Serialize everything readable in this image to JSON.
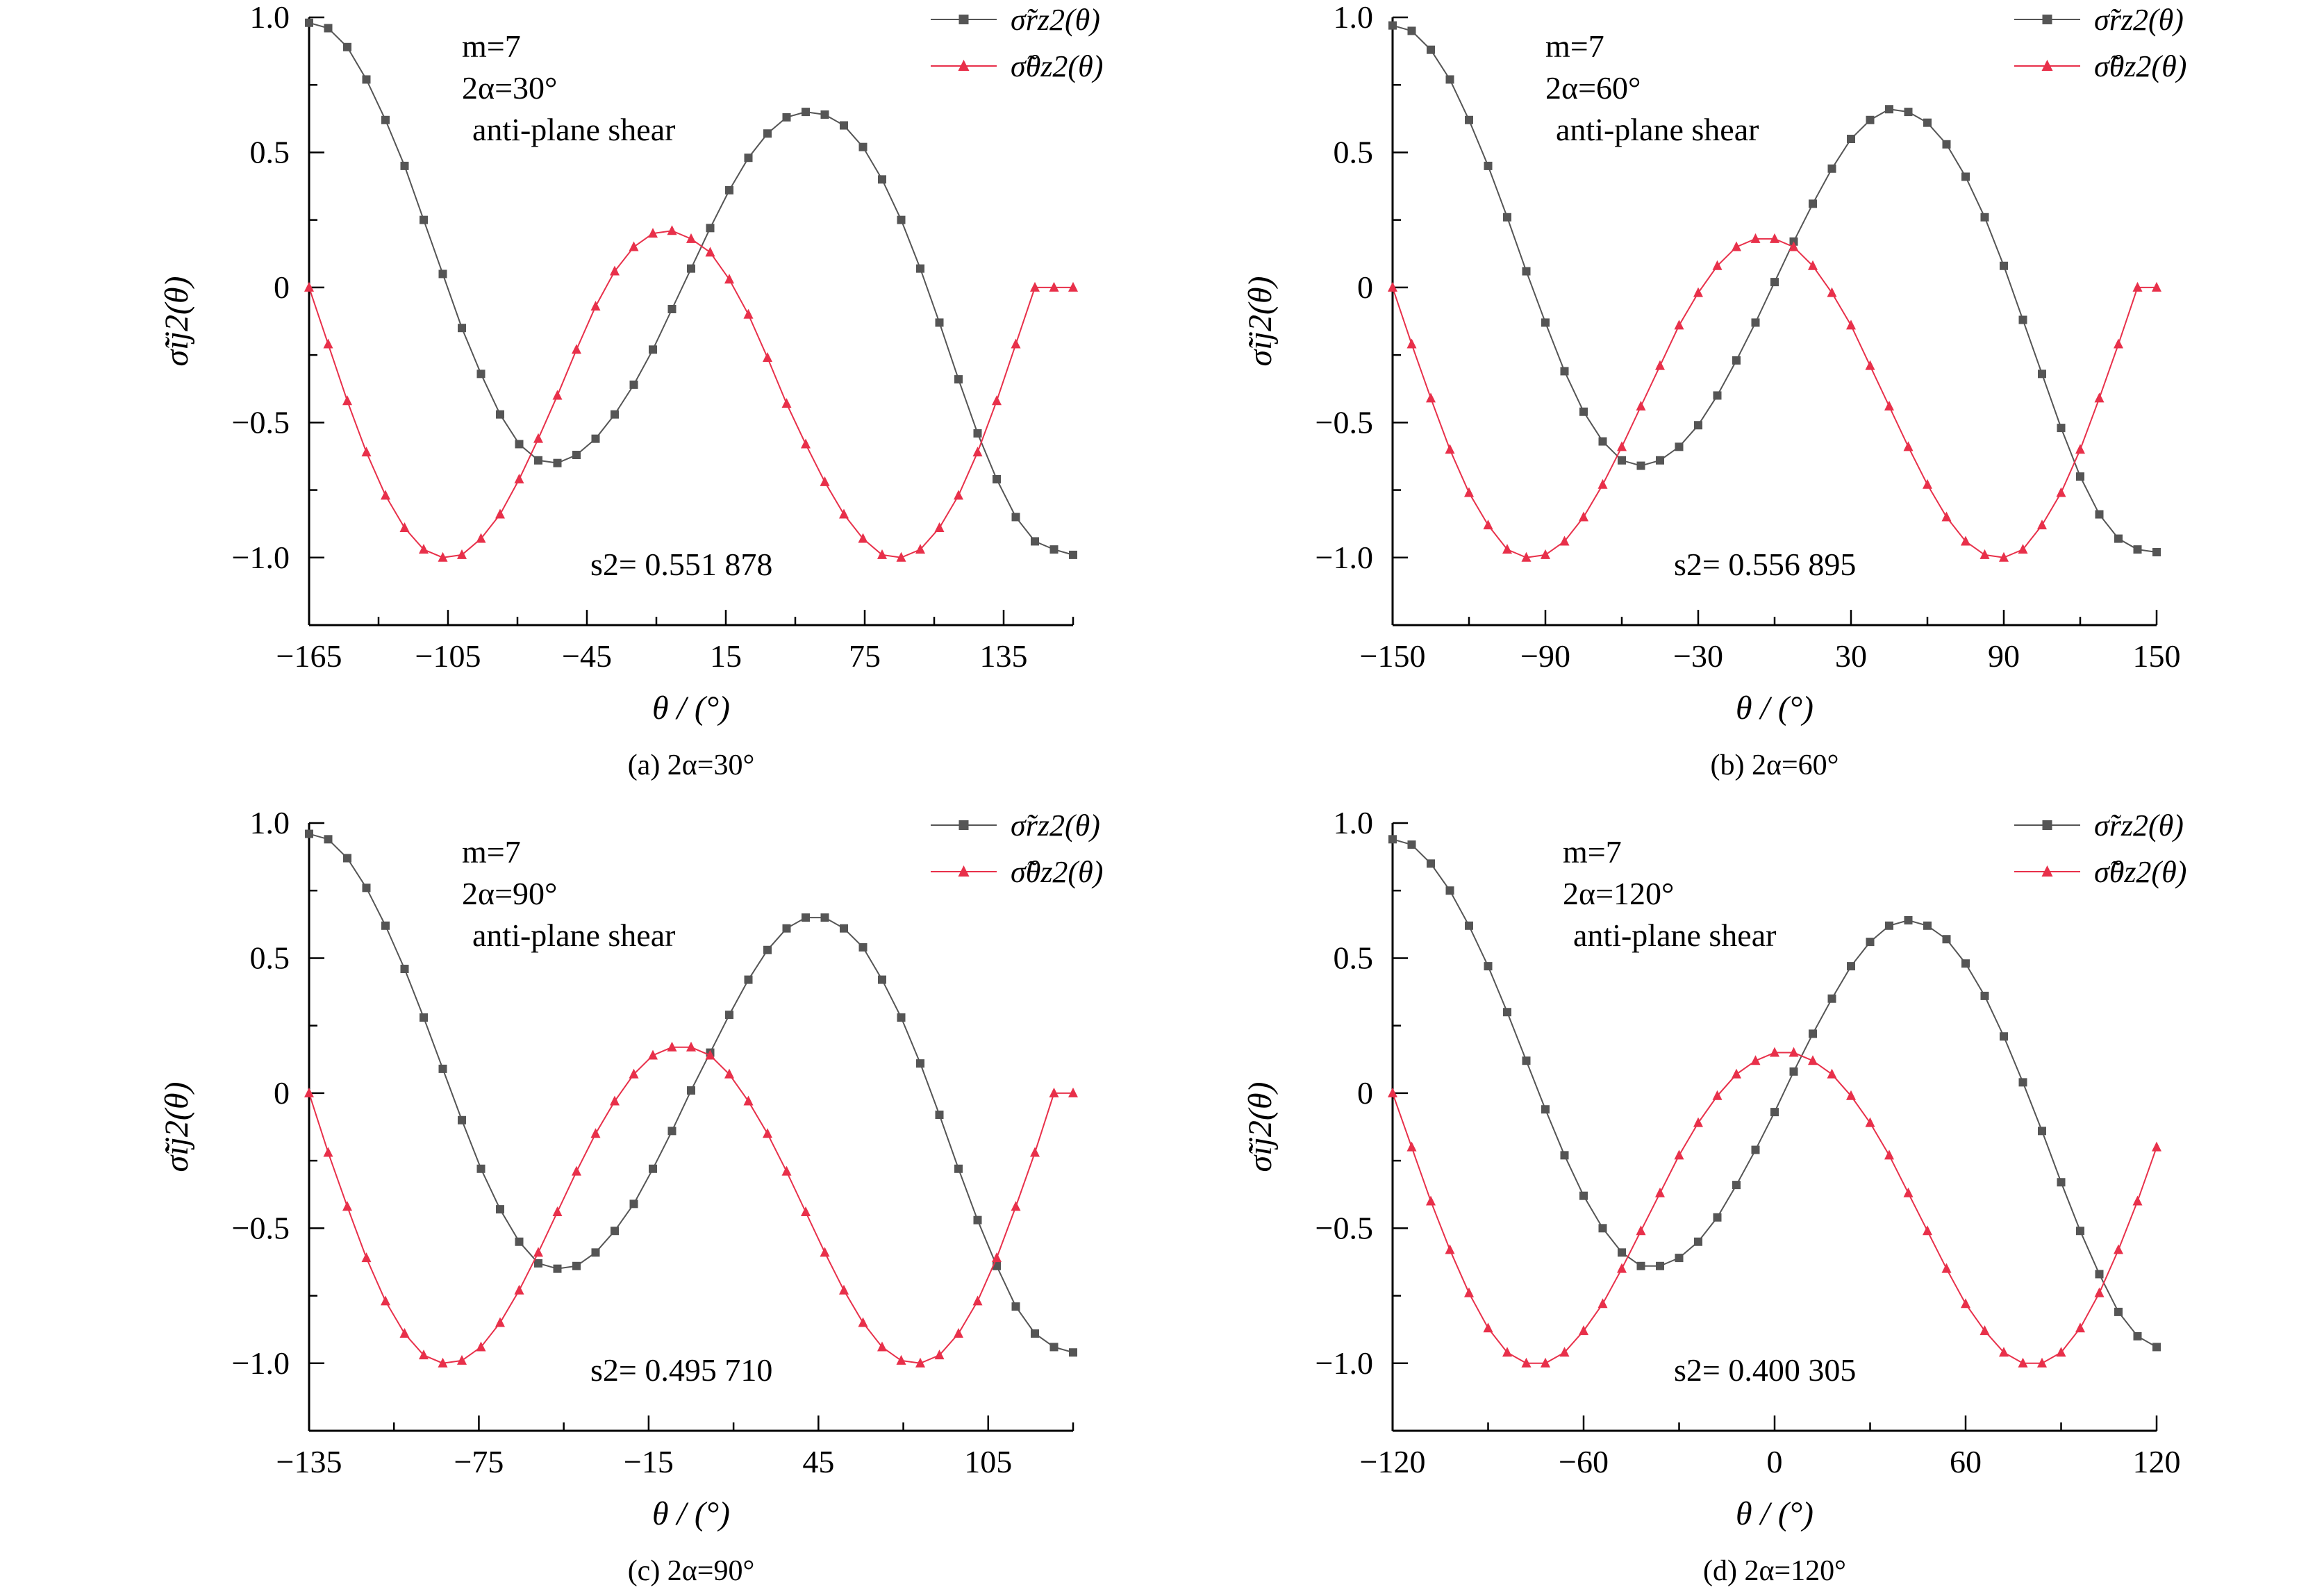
{
  "legend_labels": [
    "σ̃rz2(θ)",
    "σ̃θz2(θ)"
  ],
  "xlabel": "θ / (°)",
  "ylabel": "σ̃ij2(θ)",
  "colors": {
    "rz": "#555555",
    "thetaz": "#e8304a"
  },
  "chart_data": [
    {
      "type": "line",
      "caption": "(a) 2α=30°",
      "annotations": [
        "m=7",
        "2α=30°",
        "anti-plane shear",
        "s2= 0.551 878"
      ],
      "xlim": [
        -165,
        165
      ],
      "ylim": [
        -1.25,
        1.0
      ],
      "xticks": [
        -165,
        -105,
        -45,
        15,
        75,
        135
      ],
      "xtick_labels": [
        "−165",
        "−105",
        "−45",
        "15",
        "75",
        "135"
      ],
      "yticks": [
        1.0,
        0.5,
        0,
        -0.5,
        -1.0
      ],
      "ytick_labels": [
        "1.0",
        "0.5",
        "0",
        "−0.5",
        "−1.0"
      ],
      "series": [
        {
          "name": "σ̃rz2(θ)",
          "x_start": -165,
          "x_end": 165,
          "points": 41,
          "values": [
            0.98,
            0.96,
            0.89,
            0.77,
            0.62,
            0.45,
            0.25,
            0.05,
            -0.15,
            -0.32,
            -0.47,
            -0.58,
            -0.64,
            -0.65,
            -0.62,
            -0.56,
            -0.47,
            -0.36,
            -0.23,
            -0.08,
            0.07,
            0.22,
            0.36,
            0.48,
            0.57,
            0.63,
            0.65,
            0.64,
            0.6,
            0.52,
            0.4,
            0.25,
            0.07,
            -0.13,
            -0.34,
            -0.54,
            -0.71,
            -0.85,
            -0.94,
            -0.97,
            -0.99
          ]
        },
        {
          "name": "σ̃θz2(θ)",
          "x_start": -165,
          "x_end": 165,
          "points": 41,
          "values": [
            0.0,
            -0.21,
            -0.42,
            -0.61,
            -0.77,
            -0.89,
            -0.97,
            -1.0,
            -0.99,
            -0.93,
            -0.84,
            -0.71,
            -0.56,
            -0.4,
            -0.23,
            -0.07,
            0.06,
            0.15,
            0.2,
            0.21,
            0.18,
            0.13,
            0.03,
            -0.1,
            -0.26,
            -0.43,
            -0.58,
            -0.72,
            -0.84,
            -0.93,
            -0.99,
            -1.0,
            -0.97,
            -0.89,
            -0.77,
            -0.61,
            -0.42,
            -0.21,
            0.0,
            0.0,
            0.0
          ]
        }
      ]
    },
    {
      "type": "line",
      "caption": "(b) 2α=60°",
      "annotations": [
        "m=7",
        "2α=60°",
        "anti-plane shear",
        "s2= 0.556 895"
      ],
      "xlim": [
        -150,
        150
      ],
      "ylim": [
        -1.25,
        1.0
      ],
      "xticks": [
        -150,
        -90,
        -30,
        30,
        90,
        150
      ],
      "xtick_labels": [
        "−150",
        "−90",
        "−30",
        "30",
        "90",
        "150"
      ],
      "yticks": [
        1.0,
        0.5,
        0,
        -0.5,
        -1.0
      ],
      "ytick_labels": [
        "1.0",
        "0.5",
        "0",
        "−0.5",
        "−1.0"
      ],
      "series": [
        {
          "name": "σ̃rz2(θ)",
          "x_start": -150,
          "x_end": 150,
          "points": 41,
          "values": [
            0.97,
            0.95,
            0.88,
            0.77,
            0.62,
            0.45,
            0.26,
            0.06,
            -0.13,
            -0.31,
            -0.46,
            -0.57,
            -0.64,
            -0.66,
            -0.64,
            -0.59,
            -0.51,
            -0.4,
            -0.27,
            -0.13,
            0.02,
            0.17,
            0.31,
            0.44,
            0.55,
            0.62,
            0.66,
            0.65,
            0.61,
            0.53,
            0.41,
            0.26,
            0.08,
            -0.12,
            -0.32,
            -0.52,
            -0.7,
            -0.84,
            -0.93,
            -0.97,
            -0.98
          ]
        },
        {
          "name": "σ̃θz2(θ)",
          "x_start": -150,
          "x_end": 150,
          "points": 41,
          "values": [
            0.0,
            -0.21,
            -0.41,
            -0.6,
            -0.76,
            -0.88,
            -0.97,
            -1.0,
            -0.99,
            -0.94,
            -0.85,
            -0.73,
            -0.59,
            -0.44,
            -0.29,
            -0.14,
            -0.02,
            0.08,
            0.15,
            0.18,
            0.18,
            0.15,
            0.08,
            -0.02,
            -0.14,
            -0.29,
            -0.44,
            -0.59,
            -0.73,
            -0.85,
            -0.94,
            -0.99,
            -1.0,
            -0.97,
            -0.88,
            -0.76,
            -0.6,
            -0.41,
            -0.21,
            0.0,
            0.0
          ]
        }
      ]
    },
    {
      "type": "line",
      "caption": "(c) 2α=90°",
      "annotations": [
        "m=7",
        "2α=90°",
        "anti-plane shear",
        "s2= 0.495 710"
      ],
      "xlim": [
        -135,
        135
      ],
      "ylim": [
        -1.25,
        1.0
      ],
      "xticks": [
        -135,
        -75,
        -15,
        45,
        105
      ],
      "xtick_labels": [
        "−135",
        "−75",
        "−15",
        "45",
        "105"
      ],
      "yticks": [
        1.0,
        0.5,
        0,
        -0.5,
        -1.0
      ],
      "ytick_labels": [
        "1.0",
        "0.5",
        "0",
        "−0.5",
        "−1.0"
      ],
      "series": [
        {
          "name": "σ̃rz2(θ)",
          "x_start": -135,
          "x_end": 135,
          "points": 41,
          "values": [
            0.96,
            0.94,
            0.87,
            0.76,
            0.62,
            0.46,
            0.28,
            0.09,
            -0.1,
            -0.28,
            -0.43,
            -0.55,
            -0.63,
            -0.65,
            -0.64,
            -0.59,
            -0.51,
            -0.41,
            -0.28,
            -0.14,
            0.01,
            0.15,
            0.29,
            0.42,
            0.53,
            0.61,
            0.65,
            0.65,
            0.61,
            0.54,
            0.42,
            0.28,
            0.11,
            -0.08,
            -0.28,
            -0.47,
            -0.64,
            -0.79,
            -0.89,
            -0.94,
            -0.96
          ]
        },
        {
          "name": "σ̃θz2(θ)",
          "x_start": -135,
          "x_end": 135,
          "points": 41,
          "values": [
            0.0,
            -0.22,
            -0.42,
            -0.61,
            -0.77,
            -0.89,
            -0.97,
            -1.0,
            -0.99,
            -0.94,
            -0.85,
            -0.73,
            -0.59,
            -0.44,
            -0.29,
            -0.15,
            -0.03,
            0.07,
            0.14,
            0.17,
            0.17,
            0.14,
            0.07,
            -0.03,
            -0.15,
            -0.29,
            -0.44,
            -0.59,
            -0.73,
            -0.85,
            -0.94,
            -0.99,
            -1.0,
            -0.97,
            -0.89,
            -0.77,
            -0.61,
            -0.42,
            -0.22,
            0.0,
            0.0
          ]
        }
      ]
    },
    {
      "type": "line",
      "caption": "(d) 2α=120°",
      "annotations": [
        "m=7",
        "2α=120°",
        "anti-plane shear",
        "s2= 0.400 305"
      ],
      "xlim": [
        -120,
        120
      ],
      "ylim": [
        -1.25,
        1.0
      ],
      "xticks": [
        -120,
        -60,
        0,
        60,
        120
      ],
      "xtick_labels": [
        "−120",
        "−60",
        "0",
        "60",
        "120"
      ],
      "yticks": [
        1.0,
        0.5,
        0,
        -0.5,
        -1.0
      ],
      "ytick_labels": [
        "1.0",
        "0.5",
        "0",
        "−0.5",
        "−1.0"
      ],
      "series": [
        {
          "name": "σ̃rz2(θ)",
          "x_start": -120,
          "x_end": 120,
          "points": 41,
          "values": [
            0.94,
            0.92,
            0.85,
            0.75,
            0.62,
            0.47,
            0.3,
            0.12,
            -0.06,
            -0.23,
            -0.38,
            -0.5,
            -0.59,
            -0.64,
            -0.64,
            -0.61,
            -0.55,
            -0.46,
            -0.34,
            -0.21,
            -0.07,
            0.08,
            0.22,
            0.35,
            0.47,
            0.56,
            0.62,
            0.64,
            0.62,
            0.57,
            0.48,
            0.36,
            0.21,
            0.04,
            -0.14,
            -0.33,
            -0.51,
            -0.67,
            -0.81,
            -0.9,
            -0.94
          ]
        },
        {
          "name": "σ̃θz2(θ)",
          "x_start": -120,
          "x_end": 120,
          "points": 41,
          "values": [
            0.0,
            -0.2,
            -0.4,
            -0.58,
            -0.74,
            -0.87,
            -0.96,
            -1.0,
            -1.0,
            -0.96,
            -0.88,
            -0.78,
            -0.65,
            -0.51,
            -0.37,
            -0.23,
            -0.11,
            -0.01,
            0.07,
            0.12,
            0.15,
            0.15,
            0.12,
            0.07,
            -0.01,
            -0.11,
            -0.23,
            -0.37,
            -0.51,
            -0.65,
            -0.78,
            -0.88,
            -0.96,
            -1.0,
            -1.0,
            -0.96,
            -0.87,
            -0.74,
            -0.58,
            -0.4,
            -0.2
          ]
        }
      ]
    }
  ]
}
